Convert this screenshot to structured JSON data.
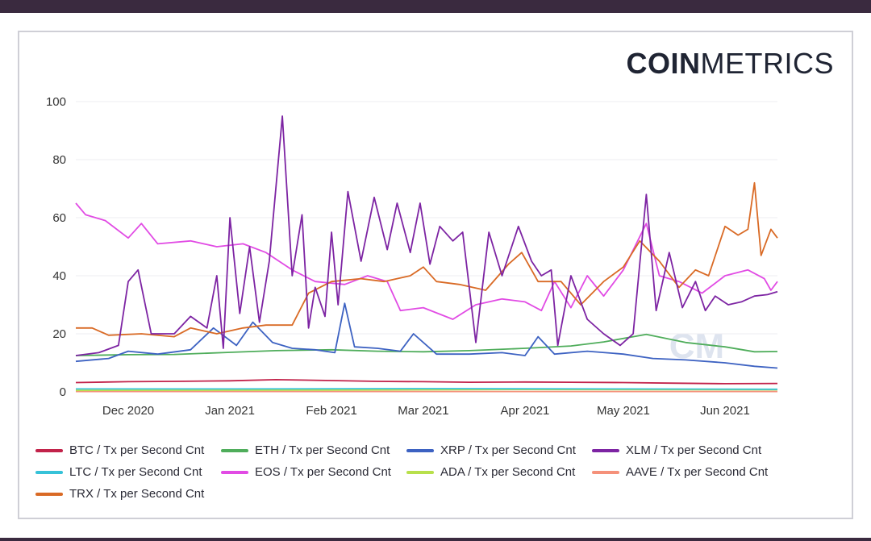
{
  "brand": {
    "bold": "COIN",
    "light": "METRICS"
  },
  "colors": {
    "BTC": "#c2234a",
    "ETH": "#4fad5b",
    "XRP": "#3d62c2",
    "XLM": "#7d24a3",
    "LTC": "#36c2d8",
    "EOS": "#e14be4",
    "ADA": "#b8e04b",
    "AAVE": "#f5917a",
    "TRX": "#d96a25",
    "grid": "#ececf0",
    "axis_text": "#333333",
    "watermark": "#c9d3e6"
  },
  "chart_data": {
    "type": "line",
    "ylim": [
      0,
      100
    ],
    "yticks": [
      0,
      20,
      40,
      60,
      80,
      100
    ],
    "xlim": [
      "2020-11-15",
      "2021-06-17"
    ],
    "xticks": [
      {
        "date": "2020-12-01",
        "label": "Dec 2020"
      },
      {
        "date": "2021-01-01",
        "label": "Jan 2021"
      },
      {
        "date": "2021-02-01",
        "label": "Feb 2021"
      },
      {
        "date": "2021-03-01",
        "label": "Mar 2021"
      },
      {
        "date": "2021-04-01",
        "label": "Apr 2021"
      },
      {
        "date": "2021-05-01",
        "label": "May 2021"
      },
      {
        "date": "2021-06-01",
        "label": "Jun 2021"
      }
    ],
    "grid": true,
    "legend_position": "bottom",
    "series": [
      {
        "key": "BTC",
        "name": "BTC / Tx per Second Cnt",
        "points": [
          [
            "2020-11-15",
            3.2
          ],
          [
            "2020-12-01",
            3.5
          ],
          [
            "2020-12-15",
            3.6
          ],
          [
            "2021-01-01",
            3.8
          ],
          [
            "2021-01-15",
            4.2
          ],
          [
            "2021-02-01",
            3.9
          ],
          [
            "2021-02-15",
            3.6
          ],
          [
            "2021-03-01",
            3.5
          ],
          [
            "2021-03-15",
            3.3
          ],
          [
            "2021-04-01",
            3.4
          ],
          [
            "2021-04-15",
            3.3
          ],
          [
            "2021-05-01",
            3.2
          ],
          [
            "2021-05-15",
            3.0
          ],
          [
            "2021-06-01",
            2.8
          ],
          [
            "2021-06-17",
            2.9
          ]
        ]
      },
      {
        "key": "ETH",
        "name": "ETH / Tx per Second Cnt",
        "points": [
          [
            "2020-11-15",
            12.5
          ],
          [
            "2020-12-01",
            12.8
          ],
          [
            "2020-12-15",
            12.9
          ],
          [
            "2021-01-01",
            13.6
          ],
          [
            "2021-01-15",
            14.2
          ],
          [
            "2021-02-01",
            14.5
          ],
          [
            "2021-02-15",
            14.0
          ],
          [
            "2021-03-01",
            13.8
          ],
          [
            "2021-03-15",
            14.2
          ],
          [
            "2021-04-01",
            15.0
          ],
          [
            "2021-04-15",
            15.8
          ],
          [
            "2021-04-25",
            17.2
          ],
          [
            "2021-05-08",
            19.8
          ],
          [
            "2021-05-20",
            17.0
          ],
          [
            "2021-06-01",
            15.5
          ],
          [
            "2021-06-10",
            13.8
          ],
          [
            "2021-06-17",
            13.9
          ]
        ]
      },
      {
        "key": "XRP",
        "name": "XRP / Tx per Second Cnt",
        "points": [
          [
            "2020-11-15",
            10.5
          ],
          [
            "2020-11-25",
            11.5
          ],
          [
            "2020-12-01",
            14.0
          ],
          [
            "2020-12-10",
            13.0
          ],
          [
            "2020-12-20",
            14.5
          ],
          [
            "2020-12-27",
            22.0
          ],
          [
            "2021-01-03",
            16.0
          ],
          [
            "2021-01-08",
            24.0
          ],
          [
            "2021-01-14",
            17.0
          ],
          [
            "2021-01-20",
            15.0
          ],
          [
            "2021-01-27",
            14.5
          ],
          [
            "2021-02-02",
            13.5
          ],
          [
            "2021-02-05",
            30.5
          ],
          [
            "2021-02-08",
            15.5
          ],
          [
            "2021-02-15",
            15.0
          ],
          [
            "2021-02-22",
            14.0
          ],
          [
            "2021-02-26",
            20.0
          ],
          [
            "2021-03-05",
            13.0
          ],
          [
            "2021-03-15",
            13.0
          ],
          [
            "2021-03-25",
            13.5
          ],
          [
            "2021-04-01",
            12.5
          ],
          [
            "2021-04-05",
            19.0
          ],
          [
            "2021-04-10",
            13.0
          ],
          [
            "2021-04-20",
            14.0
          ],
          [
            "2021-05-01",
            13.0
          ],
          [
            "2021-05-10",
            11.5
          ],
          [
            "2021-05-20",
            11.0
          ],
          [
            "2021-06-01",
            10.0
          ],
          [
            "2021-06-10",
            8.8
          ],
          [
            "2021-06-17",
            8.2
          ]
        ]
      },
      {
        "key": "XLM",
        "name": "XLM / Tx per Second Cnt",
        "points": [
          [
            "2020-11-15",
            12.5
          ],
          [
            "2020-11-22",
            13.5
          ],
          [
            "2020-11-28",
            16.0
          ],
          [
            "2020-12-01",
            38.0
          ],
          [
            "2020-12-04",
            42.0
          ],
          [
            "2020-12-08",
            20.0
          ],
          [
            "2020-12-15",
            20.0
          ],
          [
            "2020-12-20",
            26.0
          ],
          [
            "2020-12-25",
            22.0
          ],
          [
            "2020-12-28",
            40.0
          ],
          [
            "2020-12-30",
            15.0
          ],
          [
            "2021-01-01",
            60.0
          ],
          [
            "2021-01-04",
            27.0
          ],
          [
            "2021-01-07",
            50.0
          ],
          [
            "2021-01-10",
            24.0
          ],
          [
            "2021-01-13",
            45.0
          ],
          [
            "2021-01-17",
            95.0
          ],
          [
            "2021-01-20",
            40.0
          ],
          [
            "2021-01-23",
            61.0
          ],
          [
            "2021-01-25",
            22.0
          ],
          [
            "2021-01-27",
            36.0
          ],
          [
            "2021-01-30",
            26.0
          ],
          [
            "2021-02-01",
            55.0
          ],
          [
            "2021-02-03",
            30.0
          ],
          [
            "2021-02-06",
            69.0
          ],
          [
            "2021-02-10",
            45.0
          ],
          [
            "2021-02-14",
            67.0
          ],
          [
            "2021-02-18",
            49.0
          ],
          [
            "2021-02-21",
            65.0
          ],
          [
            "2021-02-25",
            48.0
          ],
          [
            "2021-02-28",
            65.0
          ],
          [
            "2021-03-03",
            44.0
          ],
          [
            "2021-03-06",
            57.0
          ],
          [
            "2021-03-10",
            52.0
          ],
          [
            "2021-03-13",
            55.0
          ],
          [
            "2021-03-17",
            17.0
          ],
          [
            "2021-03-21",
            55.0
          ],
          [
            "2021-03-25",
            40.0
          ],
          [
            "2021-03-30",
            57.0
          ],
          [
            "2021-04-03",
            45.0
          ],
          [
            "2021-04-06",
            40.0
          ],
          [
            "2021-04-09",
            42.0
          ],
          [
            "2021-04-11",
            16.0
          ],
          [
            "2021-04-15",
            40.0
          ],
          [
            "2021-04-20",
            25.0
          ],
          [
            "2021-04-25",
            20.0
          ],
          [
            "2021-04-30",
            16.0
          ],
          [
            "2021-05-04",
            20.0
          ],
          [
            "2021-05-08",
            68.0
          ],
          [
            "2021-05-11",
            28.0
          ],
          [
            "2021-05-15",
            48.0
          ],
          [
            "2021-05-19",
            29.0
          ],
          [
            "2021-05-23",
            38.0
          ],
          [
            "2021-05-26",
            28.0
          ],
          [
            "2021-05-29",
            33.0
          ],
          [
            "2021-06-02",
            30.0
          ],
          [
            "2021-06-06",
            31.0
          ],
          [
            "2021-06-10",
            33.0
          ],
          [
            "2021-06-14",
            33.5
          ],
          [
            "2021-06-17",
            34.5
          ]
        ]
      },
      {
        "key": "LTC",
        "name": "LTC / Tx per Second Cnt",
        "points": [
          [
            "2020-11-15",
            1.0
          ],
          [
            "2021-01-01",
            1.0
          ],
          [
            "2021-03-01",
            1.1
          ],
          [
            "2021-05-01",
            1.0
          ],
          [
            "2021-06-17",
            0.9
          ]
        ]
      },
      {
        "key": "EOS",
        "name": "EOS / Tx per Second Cnt",
        "points": [
          [
            "2020-11-15",
            65.0
          ],
          [
            "2020-11-18",
            61.0
          ],
          [
            "2020-11-24",
            59.0
          ],
          [
            "2020-12-01",
            53.0
          ],
          [
            "2020-12-05",
            58.0
          ],
          [
            "2020-12-10",
            51.0
          ],
          [
            "2020-12-20",
            52.0
          ],
          [
            "2020-12-28",
            50.0
          ],
          [
            "2021-01-05",
            51.0
          ],
          [
            "2021-01-12",
            48.0
          ],
          [
            "2021-01-20",
            42.0
          ],
          [
            "2021-01-27",
            38.0
          ],
          [
            "2021-02-05",
            37.0
          ],
          [
            "2021-02-12",
            40.0
          ],
          [
            "2021-02-18",
            38.0
          ],
          [
            "2021-02-22",
            28.0
          ],
          [
            "2021-03-01",
            29.0
          ],
          [
            "2021-03-10",
            25.0
          ],
          [
            "2021-03-17",
            30.0
          ],
          [
            "2021-03-25",
            32.0
          ],
          [
            "2021-04-01",
            31.0
          ],
          [
            "2021-04-06",
            28.0
          ],
          [
            "2021-04-10",
            38.0
          ],
          [
            "2021-04-15",
            29.0
          ],
          [
            "2021-04-20",
            40.0
          ],
          [
            "2021-04-25",
            33.0
          ],
          [
            "2021-05-01",
            42.0
          ],
          [
            "2021-05-08",
            58.0
          ],
          [
            "2021-05-12",
            40.0
          ],
          [
            "2021-05-18",
            38.0
          ],
          [
            "2021-05-25",
            34.0
          ],
          [
            "2021-06-01",
            40.0
          ],
          [
            "2021-06-08",
            42.0
          ],
          [
            "2021-06-13",
            39.0
          ],
          [
            "2021-06-15",
            35.0
          ],
          [
            "2021-06-17",
            38.0
          ]
        ]
      },
      {
        "key": "ADA",
        "name": "ADA / Tx per Second Cnt",
        "points": [
          [
            "2020-11-15",
            0.5
          ],
          [
            "2021-02-01",
            0.6
          ],
          [
            "2021-04-01",
            0.8
          ],
          [
            "2021-06-17",
            0.7
          ]
        ]
      },
      {
        "key": "AAVE",
        "name": "AAVE / Tx per Second Cnt",
        "points": [
          [
            "2020-11-15",
            0.1
          ],
          [
            "2021-06-17",
            0.1
          ]
        ]
      },
      {
        "key": "TRX",
        "name": "TRX / Tx per Second Cnt",
        "points": [
          [
            "2020-11-15",
            22.0
          ],
          [
            "2020-11-20",
            22.0
          ],
          [
            "2020-11-25",
            19.5
          ],
          [
            "2020-12-05",
            20.0
          ],
          [
            "2020-12-15",
            19.0
          ],
          [
            "2020-12-20",
            22.0
          ],
          [
            "2020-12-28",
            20.0
          ],
          [
            "2021-01-05",
            22.0
          ],
          [
            "2021-01-12",
            23.0
          ],
          [
            "2021-01-20",
            23.0
          ],
          [
            "2021-01-25",
            34.0
          ],
          [
            "2021-02-01",
            38.0
          ],
          [
            "2021-02-10",
            39.0
          ],
          [
            "2021-02-17",
            38.0
          ],
          [
            "2021-02-25",
            40.0
          ],
          [
            "2021-03-01",
            43.0
          ],
          [
            "2021-03-05",
            38.0
          ],
          [
            "2021-03-12",
            37.0
          ],
          [
            "2021-03-20",
            35.0
          ],
          [
            "2021-03-27",
            44.0
          ],
          [
            "2021-03-31",
            48.0
          ],
          [
            "2021-04-05",
            38.0
          ],
          [
            "2021-04-12",
            38.0
          ],
          [
            "2021-04-18",
            30.0
          ],
          [
            "2021-04-25",
            38.0
          ],
          [
            "2021-05-01",
            43.0
          ],
          [
            "2021-05-06",
            52.0
          ],
          [
            "2021-05-12",
            45.0
          ],
          [
            "2021-05-18",
            36.0
          ],
          [
            "2021-05-23",
            42.0
          ],
          [
            "2021-05-27",
            40.0
          ],
          [
            "2021-06-01",
            57.0
          ],
          [
            "2021-06-05",
            54.0
          ],
          [
            "2021-06-08",
            56.0
          ],
          [
            "2021-06-10",
            72.0
          ],
          [
            "2021-06-12",
            47.0
          ],
          [
            "2021-06-15",
            56.0
          ],
          [
            "2021-06-17",
            53.0
          ]
        ]
      }
    ]
  }
}
